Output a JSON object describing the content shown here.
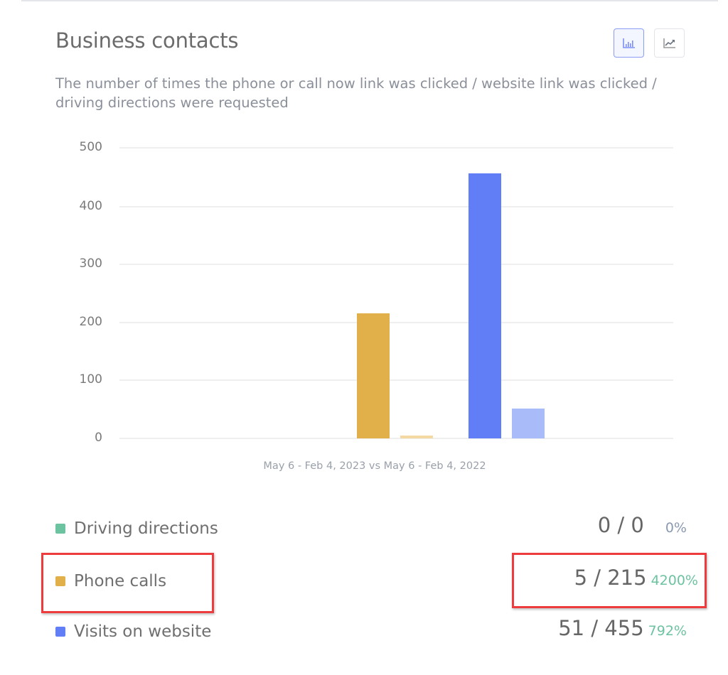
{
  "header": {
    "title": "Business contacts",
    "subtitle": "The number of times the phone or call now link was clicked / website link was clicked / driving directions were requested"
  },
  "toggles": [
    {
      "name": "bar-chart-toggle",
      "icon": "bar-chart-icon",
      "active": true
    },
    {
      "name": "line-chart-toggle",
      "icon": "line-chart-icon",
      "active": false
    }
  ],
  "colors": {
    "driving_directions": "#6cc3a0",
    "phone_calls_current": "#e2b04b",
    "phone_calls_previous": "#f5d9a3",
    "visits_current": "#617ef7",
    "visits_previous": "#a9bcf9",
    "positive_change": "#6cc3a0",
    "annotation": "#ee3b3e"
  },
  "chart_data": {
    "type": "bar",
    "title": "Business contacts",
    "xlabel": "May 6 - Feb 4, 2023 vs May 6 - Feb 4, 2022",
    "ylabel": "",
    "ylim": [
      0,
      500
    ],
    "yticks": [
      0,
      100,
      200,
      300,
      400,
      500
    ],
    "grid": true,
    "legend_position": "bottom",
    "categories": [
      "Driving directions",
      "Phone calls",
      "Visits on website"
    ],
    "series": [
      {
        "name": "May 6 - Feb 4, 2023",
        "values": [
          0,
          215,
          455
        ]
      },
      {
        "name": "May 6 - Feb 4, 2022",
        "values": [
          0,
          5,
          51
        ]
      }
    ]
  },
  "axis": {
    "y_labels": [
      "500",
      "400",
      "300",
      "200",
      "100",
      "0"
    ],
    "x_label": "May 6 - Feb 4, 2023 vs May 6 - Feb 4, 2022"
  },
  "legend": [
    {
      "label": "Driving directions",
      "value": "0 / 0",
      "change": "0%"
    },
    {
      "label": "Phone calls",
      "value": "5 / 215",
      "change": "4200%"
    },
    {
      "label": "Visits on website",
      "value": "51 / 455",
      "change": "792%"
    }
  ]
}
